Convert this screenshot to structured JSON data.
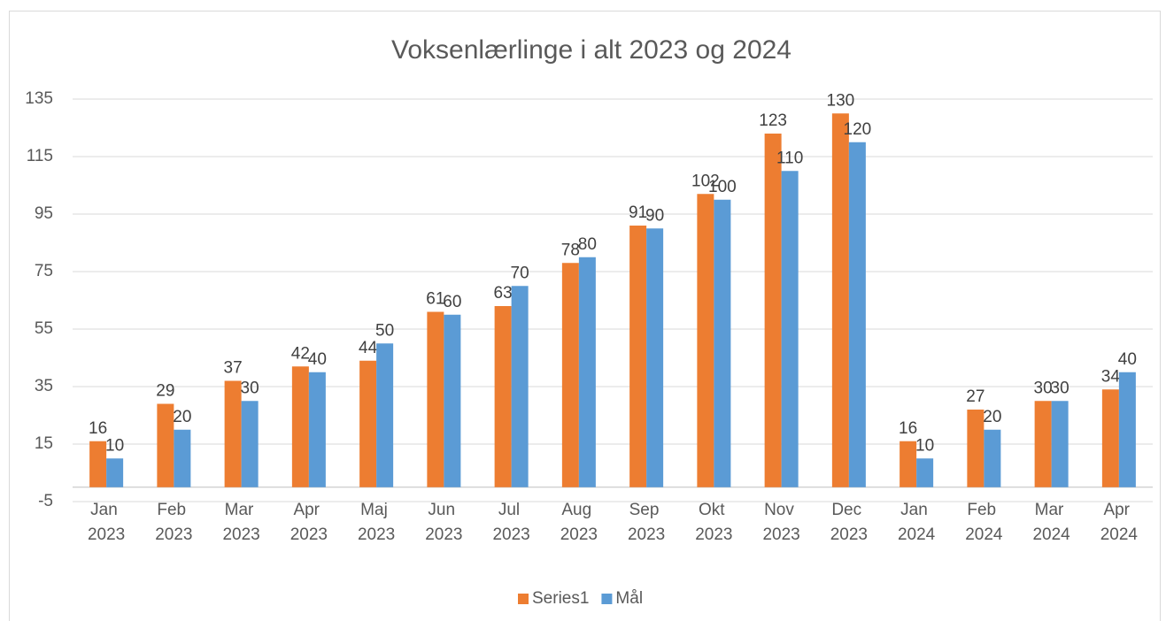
{
  "chart_data": {
    "type": "bar",
    "title": "Voksenlærlinge i alt 2023 og 2024",
    "categories": [
      "Jan 2023",
      "Feb 2023",
      "Mar 2023",
      "Apr 2023",
      "Maj 2023",
      "Jun 2023",
      "Jul 2023",
      "Aug 2023",
      "Sep 2023",
      "Okt 2023",
      "Nov 2023",
      "Dec 2023",
      "Jan 2024",
      "Feb 2024",
      "Mar 2024",
      "Apr 2024"
    ],
    "series": [
      {
        "name": "Series1",
        "color": "#ed7d31",
        "values": [
          16,
          29,
          37,
          42,
          44,
          61,
          63,
          78,
          91,
          102,
          123,
          130,
          16,
          27,
          30,
          34
        ]
      },
      {
        "name": "Mål",
        "color": "#5b9bd5",
        "values": [
          10,
          20,
          30,
          40,
          50,
          60,
          70,
          80,
          90,
          100,
          110,
          120,
          10,
          20,
          30,
          40
        ]
      }
    ],
    "ylim": [
      -5,
      135
    ],
    "yticks": [
      -5,
      15,
      35,
      55,
      75,
      95,
      115,
      135
    ],
    "grid": true,
    "legend": "bottom"
  }
}
